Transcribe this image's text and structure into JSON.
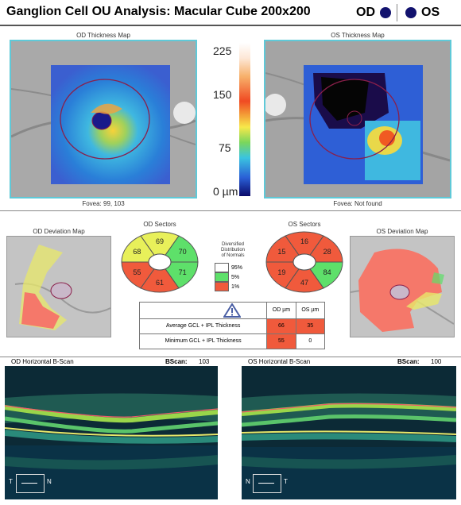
{
  "header": {
    "title": "Ganglion Cell OU Analysis: Macular Cube 200x200",
    "od_label": "OD",
    "os_label": "OS"
  },
  "od_thickness_map": {
    "title": "OD Thickness Map",
    "fovea": "Fovea: 99, 103"
  },
  "os_thickness_map": {
    "title": "OS Thickness Map",
    "fovea": "Fovea: Not found"
  },
  "colorbar": {
    "ticks": [
      "225",
      "150",
      "75",
      "0 µm"
    ]
  },
  "od_deviation_map": {
    "title": "OD Deviation Map"
  },
  "os_deviation_map": {
    "title": "OS Deviation Map"
  },
  "od_sectors": {
    "title": "OD Sectors",
    "values": [
      "69",
      "70",
      "71",
      "61",
      "55",
      "68"
    ],
    "colors": [
      "#e8f05a",
      "#5ee06a",
      "#5ee06a",
      "#f05a3c",
      "#f05a3c",
      "#e8f05a"
    ]
  },
  "os_sectors": {
    "title": "OS Sectors",
    "values": [
      "16",
      "28",
      "84",
      "47",
      "19",
      "15"
    ],
    "colors": [
      "#f05a3c",
      "#f05a3c",
      "#5ee06a",
      "#f05a3c",
      "#f05a3c",
      "#f05a3c"
    ]
  },
  "legend": {
    "title_lines": [
      "Diversified",
      "Distribution",
      "of Normals"
    ],
    "items": [
      {
        "label": "95%",
        "color": "#ffffff"
      },
      {
        "label": "5%",
        "color": "#5ee06a"
      },
      {
        "label": "1%",
        "color": "#f05a3c"
      }
    ]
  },
  "table": {
    "warning_icon": "warning-triangle-icon",
    "headers": [
      "OD µm",
      "OS µm"
    ],
    "rows": [
      {
        "label": "Average GCL + IPL Thickness",
        "od": "66",
        "os": "35"
      },
      {
        "label": "Minimum GCL + IPL Thickness",
        "od": "55",
        "os": "0"
      }
    ]
  },
  "od_bscan": {
    "title": "OD Horizontal B-Scan",
    "bscan_label": "BScan:",
    "bscan_value": "103",
    "orient_left": "T",
    "orient_right": "N"
  },
  "os_bscan": {
    "title": "OS Horizontal B-Scan",
    "bscan_label": "BScan:",
    "bscan_value": "100",
    "orient_left": "N",
    "orient_right": "T"
  }
}
